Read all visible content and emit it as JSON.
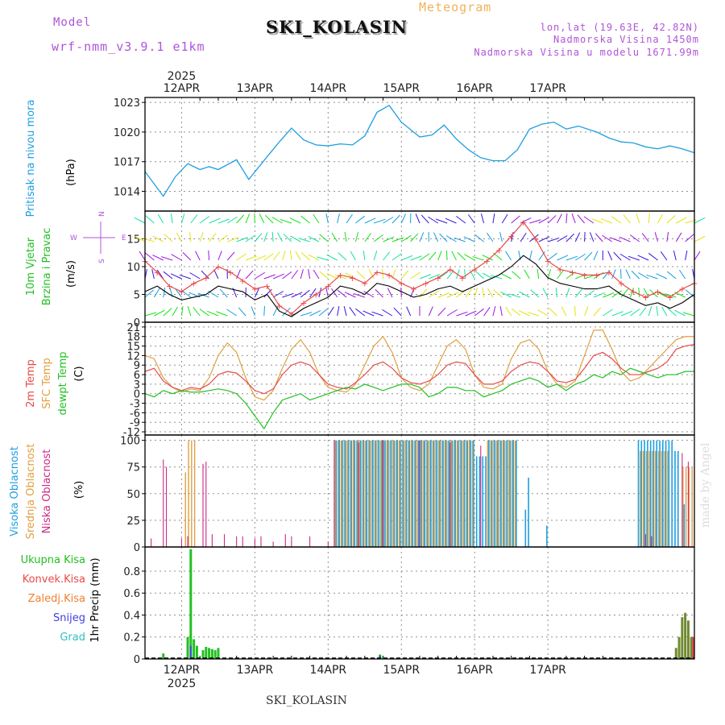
{
  "header": {
    "model_label": "Model",
    "model_name": "wrf-nmm_v3.9.1 e1km",
    "product": "Meteogram",
    "station": "SKI_KOLASIN",
    "lonlat": "lon,lat (19.63E, 42.82N)",
    "elevation": "Nadmorska Visina 1450m",
    "model_elevation": "Nadmorska Visina u modelu 1671.99m"
  },
  "footer": {
    "station": "SKI_KOLASIN",
    "credit": "made by Angel"
  },
  "time_axis": {
    "year": "2025",
    "days": [
      "12APR",
      "13APR",
      "14APR",
      "15APR",
      "16APR",
      "17APR"
    ]
  },
  "colors": {
    "pressure": "#1f9fe0",
    "wind_speed": "#000000",
    "wind_gust": "#e84a4a",
    "temp_2m": "#e84a4a",
    "temp_sfc": "#e0a040",
    "dewpoint": "#22c022",
    "cloud_high": "#1f9fe0",
    "cloud_mid": "#e0a040",
    "cloud_low": "#cc2a88",
    "precip_total": "#22c022",
    "precip_conv": "#e84a4a",
    "precip_frz": "#f08030",
    "precip_snow": "#4040e0",
    "precip_grad": "#30c0c0",
    "grid": "#909090"
  },
  "chart_data": [
    {
      "type": "line",
      "panel": "pressure",
      "ylabel_lines": [
        "Pritisak na nivou mora"
      ],
      "unit": "(hPa)",
      "ylim": [
        1012,
        1023.5
      ],
      "yticks": [
        1014,
        1017,
        1020,
        1023
      ],
      "series": [
        {
          "x": [
            0,
            6,
            10,
            14,
            18,
            21,
            24,
            30,
            34,
            40,
            44,
            48,
            52,
            56,
            60,
            64,
            68,
            72,
            76,
            80,
            84,
            90,
            94,
            98,
            102,
            106,
            110,
            114,
            118,
            122,
            126,
            130,
            134,
            138,
            142,
            148,
            152,
            156,
            160,
            164,
            168,
            172,
            176,
            180
          ],
          "y": [
            1016.0,
            1013.5,
            1015.5,
            1016.8,
            1016.2,
            1016.5,
            1016.2,
            1017.2,
            1015.2,
            1017.5,
            1019.0,
            1020.4,
            1019.2,
            1018.7,
            1018.6,
            1018.8,
            1018.7,
            1019.6,
            1022.0,
            1022.7,
            1021.0,
            1019.5,
            1019.7,
            1020.7,
            1019.3,
            1018.2,
            1017.4,
            1017.1,
            1017.1,
            1018.2,
            1020.3,
            1020.8,
            1021.0,
            1020.3,
            1020.6,
            1020.0,
            1019.4,
            1019.0,
            1018.9,
            1018.5,
            1018.3,
            1018.6,
            1018.3,
            1017.9
          ]
        }
      ]
    },
    {
      "type": "line",
      "panel": "wind",
      "ylabel_lines": [
        "10m Vjetar",
        "Brzina i Pravac"
      ],
      "unit": "(m/s)",
      "compass": [
        "N",
        "W",
        "E",
        "S"
      ],
      "ylim": [
        0,
        20
      ],
      "yticks": [
        0,
        5,
        10,
        15
      ],
      "series": [
        {
          "name_key": "speed",
          "x": [
            0,
            4,
            8,
            12,
            16,
            20,
            24,
            28,
            32,
            36,
            40,
            44,
            48,
            52,
            56,
            60,
            64,
            68,
            72,
            76,
            80,
            84,
            88,
            92,
            96,
            100,
            104,
            108,
            112,
            116,
            120,
            124,
            128,
            132,
            136,
            140,
            144,
            148,
            152,
            156,
            160,
            164,
            168,
            172,
            176,
            180
          ],
          "y": [
            5.5,
            6.5,
            5.0,
            4.0,
            4.5,
            5.0,
            6.5,
            6.0,
            5.5,
            4.0,
            5.0,
            2.0,
            1.0,
            2.5,
            3.5,
            4.5,
            6.5,
            6.0,
            5.0,
            7.0,
            6.5,
            5.5,
            4.5,
            5.0,
            6.0,
            6.5,
            5.5,
            6.5,
            7.5,
            8.5,
            10.0,
            12.0,
            10.5,
            8.0,
            7.0,
            6.5,
            6.0,
            6.0,
            6.5,
            5.0,
            4.0,
            3.0,
            3.5,
            2.5,
            3.5,
            5.0
          ]
        },
        {
          "name_key": "gust",
          "x": [
            0,
            4,
            8,
            12,
            16,
            20,
            24,
            28,
            32,
            36,
            40,
            44,
            48,
            52,
            56,
            60,
            64,
            68,
            72,
            76,
            80,
            84,
            88,
            92,
            96,
            100,
            104,
            108,
            112,
            116,
            120,
            124,
            128,
            132,
            136,
            140,
            144,
            148,
            152,
            156,
            160,
            164,
            168,
            172,
            176,
            180
          ],
          "y": [
            11.0,
            9.0,
            6.5,
            5.5,
            7.0,
            8.0,
            10.0,
            9.0,
            7.5,
            6.0,
            6.5,
            3.0,
            1.5,
            3.5,
            5.0,
            6.5,
            8.5,
            8.0,
            7.0,
            9.0,
            8.5,
            7.0,
            6.0,
            7.0,
            8.0,
            9.5,
            8.0,
            9.5,
            11.0,
            13.0,
            15.5,
            18.0,
            15.0,
            11.0,
            9.5,
            9.0,
            8.5,
            8.5,
            9.0,
            7.0,
            5.5,
            4.5,
            5.5,
            4.5,
            6.0,
            7.0
          ]
        }
      ]
    },
    {
      "type": "line",
      "panel": "temperature",
      "ylabel_lines": [
        "2m Temp",
        "SFC Temp",
        "dewpt Temp"
      ],
      "unit": "(C)",
      "ylim": [
        -13,
        22.5
      ],
      "yticks": [
        -12,
        -9,
        -6,
        -3,
        0,
        3,
        6,
        9,
        12,
        15,
        18,
        21
      ],
      "series": [
        {
          "name_key": "t2m",
          "x": [
            0,
            3,
            6,
            9,
            12,
            15,
            18,
            21,
            24,
            27,
            30,
            33,
            36,
            39,
            42,
            45,
            48,
            51,
            54,
            57,
            60,
            63,
            66,
            69,
            72,
            75,
            78,
            81,
            84,
            87,
            90,
            93,
            96,
            99,
            102,
            105,
            108,
            111,
            114,
            117,
            120,
            123,
            126,
            129,
            132,
            135,
            138,
            141,
            144,
            147,
            150,
            153,
            156,
            159,
            162,
            165,
            168,
            171,
            174,
            177,
            180
          ],
          "y": [
            7,
            8,
            4,
            2,
            1,
            2,
            1.5,
            3,
            6,
            7,
            6.5,
            4,
            1,
            0,
            1.5,
            6,
            9,
            10,
            9,
            6,
            3,
            2,
            1.5,
            3.5,
            6,
            9,
            10,
            8,
            5,
            3.5,
            3,
            4,
            6,
            9,
            10,
            9.5,
            6,
            3,
            3,
            4,
            7,
            9,
            10,
            9.5,
            7,
            4,
            3.5,
            4.5,
            8,
            12,
            13,
            11,
            8,
            6,
            6,
            7,
            8,
            10,
            14,
            15,
            15.5
          ]
        },
        {
          "name_key": "tsfc",
          "x": [
            0,
            3,
            6,
            9,
            12,
            15,
            18,
            21,
            24,
            27,
            30,
            33,
            36,
            39,
            42,
            45,
            48,
            51,
            54,
            57,
            60,
            63,
            66,
            69,
            72,
            75,
            78,
            81,
            84,
            87,
            90,
            93,
            96,
            99,
            102,
            105,
            108,
            111,
            114,
            117,
            120,
            123,
            126,
            129,
            132,
            135,
            138,
            141,
            144,
            147,
            150,
            153,
            156,
            159,
            162,
            165,
            168,
            171,
            174,
            177,
            180
          ],
          "y": [
            12,
            11,
            5,
            2,
            0.5,
            1.5,
            1,
            5,
            12,
            16,
            13,
            5,
            -1,
            -2,
            1,
            8,
            14,
            17,
            13,
            6,
            2,
            1,
            0.5,
            3,
            9,
            15,
            18,
            13,
            5,
            2,
            1,
            3,
            9,
            15,
            17,
            14,
            6,
            2,
            1.5,
            3,
            11,
            16,
            17,
            14,
            7,
            3,
            2,
            4,
            12,
            20,
            20,
            14,
            7,
            4,
            5,
            8,
            11,
            14,
            17,
            18,
            18
          ]
        },
        {
          "name_key": "dewpt",
          "x": [
            0,
            3,
            6,
            9,
            12,
            15,
            18,
            21,
            24,
            27,
            30,
            33,
            36,
            39,
            42,
            45,
            48,
            51,
            54,
            57,
            60,
            63,
            66,
            69,
            72,
            75,
            78,
            81,
            84,
            87,
            90,
            93,
            96,
            99,
            102,
            105,
            108,
            111,
            114,
            117,
            120,
            123,
            126,
            129,
            132,
            135,
            138,
            141,
            144,
            147,
            150,
            153,
            156,
            159,
            162,
            165,
            168,
            171,
            174,
            177,
            180
          ],
          "y": [
            0,
            -1,
            1,
            0,
            1,
            0.5,
            0.5,
            1,
            1.5,
            1,
            0,
            -3,
            -7,
            -11,
            -6,
            -2,
            -1,
            0,
            -2,
            -1,
            0,
            1,
            2,
            1.5,
            3,
            2,
            1,
            2,
            3,
            3,
            2,
            -1,
            0,
            2,
            2,
            1,
            1,
            -1,
            0,
            1,
            3,
            4,
            5,
            4,
            2,
            3,
            1,
            3,
            4,
            6,
            5,
            7,
            6,
            8,
            7,
            6,
            5,
            6,
            6,
            7,
            7
          ]
        }
      ]
    },
    {
      "type": "bar",
      "panel": "clouds",
      "ylabel_lines": [
        "Visoka Oblacnost",
        "Srednja Oblacnost",
        "Niska Oblacnost"
      ],
      "unit": "(%)",
      "ylim": [
        0,
        105
      ],
      "yticks": [
        0,
        25,
        50,
        75,
        100
      ],
      "series": [
        {
          "name_key": "high",
          "ranges": [
            [
              62,
              108,
              100
            ],
            [
              108,
              112,
              85
            ],
            [
              112,
              122,
              100
            ],
            [
              124,
              125,
              35
            ],
            [
              125,
              126,
              65
            ],
            [
              131,
              132,
              20
            ],
            [
              161,
              173,
              100
            ],
            [
              173,
              175,
              90
            ],
            [
              176,
              177,
              40
            ]
          ]
        },
        {
          "name_key": "mid",
          "ranges": [
            [
              13,
              14,
              70
            ],
            [
              14,
              17,
              100
            ],
            [
              62,
              108,
              100
            ],
            [
              112,
              122,
              100
            ],
            [
              162,
              172,
              90
            ],
            [
              176,
              180,
              75
            ]
          ]
        },
        {
          "name_key": "low",
          "points": [
            [
              2,
              8
            ],
            [
              6,
              82
            ],
            [
              7,
              75
            ],
            [
              12,
              8
            ],
            [
              14,
              10
            ],
            [
              19,
              78
            ],
            [
              20,
              80
            ],
            [
              22,
              12
            ],
            [
              26,
              12
            ],
            [
              30,
              10
            ],
            [
              32,
              10
            ],
            [
              36,
              8
            ],
            [
              38,
              10
            ],
            [
              42,
              5
            ],
            [
              46,
              12
            ],
            [
              48,
              10
            ],
            [
              54,
              10
            ],
            [
              60,
              5
            ],
            [
              62,
              100
            ],
            [
              70,
              98
            ],
            [
              78,
              100
            ],
            [
              90,
              100
            ],
            [
              100,
              98
            ],
            [
              110,
              95
            ],
            [
              164,
              12
            ],
            [
              166,
              10
            ],
            [
              176,
              88
            ],
            [
              178,
              80
            ]
          ]
        }
      ]
    },
    {
      "type": "bar",
      "panel": "precip",
      "ylabel_lines": [
        "1hr Precip (mm)"
      ],
      "legend": [
        "Ukupna Kisa",
        "Konvek.Kisa",
        "Zaledj.Kisa",
        "Snijeg",
        "Grad"
      ],
      "ylim": [
        0,
        1.02
      ],
      "yticks": [
        0,
        0.2,
        0.4,
        0.6,
        0.8
      ],
      "series": [
        {
          "name_key": "total",
          "points": [
            [
              6,
              0.05
            ],
            [
              14,
              0.2
            ],
            [
              15,
              1.0
            ],
            [
              16,
              0.18
            ],
            [
              17,
              0.12
            ],
            [
              19,
              0.08
            ],
            [
              20,
              0.11
            ],
            [
              21,
              0.1
            ],
            [
              22,
              0.09
            ],
            [
              23,
              0.08
            ],
            [
              24,
              0.1
            ],
            [
              77,
              0.04
            ],
            [
              78,
              0.02
            ],
            [
              174,
              0.1
            ],
            [
              175,
              0.2
            ],
            [
              176,
              0.38
            ],
            [
              177,
              0.42
            ],
            [
              178,
              0.35
            ],
            [
              179,
              0.2
            ]
          ]
        },
        {
          "name_key": "snow",
          "points": [
            [
              15,
              0.12
            ],
            [
              77,
              0.03
            ]
          ]
        }
      ]
    }
  ]
}
